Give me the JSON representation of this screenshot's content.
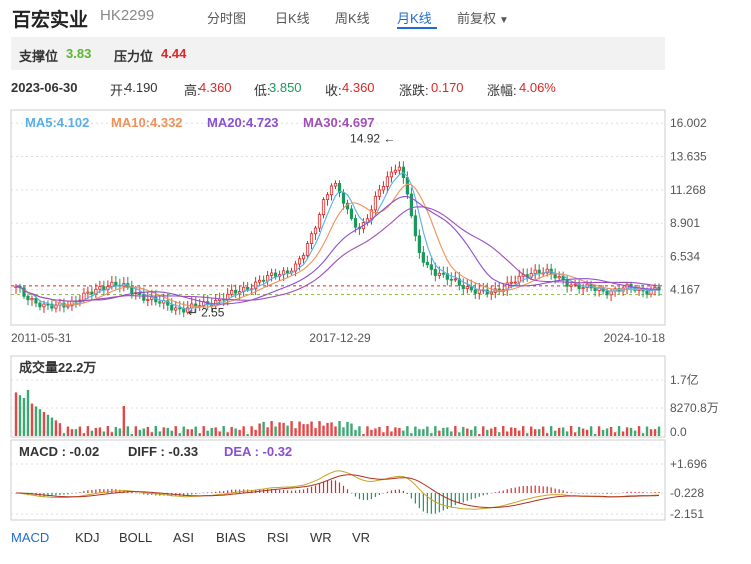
{
  "header": {
    "stock_name": "百宏实业",
    "stock_code": "HK2299",
    "tabs": [
      {
        "label": "分时图",
        "active": false
      },
      {
        "label": "日K线",
        "active": false
      },
      {
        "label": "周K线",
        "active": false
      },
      {
        "label": "月K线",
        "active": true
      },
      {
        "label": "前复权",
        "active": false,
        "dropdown": true
      }
    ]
  },
  "levels": {
    "support_label": "支撑位",
    "support_value": "3.83",
    "resistance_label": "压力位",
    "resistance_value": "4.44"
  },
  "ohlc": {
    "date": "2023-06-30",
    "open_label": "开:",
    "open": "4.190",
    "high_label": "高:",
    "high": "4.360",
    "low_label": "低:",
    "low": "3.850",
    "close_label": "收:",
    "close": "4.360",
    "change_label": "涨跌:",
    "change": "0.170",
    "pct_label": "涨幅:",
    "pct": "4.06%"
  },
  "ma_legend": [
    {
      "text": "MA5:4.102",
      "color": "#5aafe6"
    },
    {
      "text": "MA10:4.332",
      "color": "#f0915a"
    },
    {
      "text": "MA20:4.723",
      "color": "#8a4fd0"
    },
    {
      "text": "MA30:4.697",
      "color": "#a04fb8"
    }
  ],
  "colors": {
    "up": "#e02626",
    "down": "#1a9a5a",
    "axis": "#555",
    "grid": "#dddddd",
    "support_line": "#8bc34a",
    "resistance_line": "#e0262680"
  },
  "volume": {
    "label": "成交量22.2万",
    "ticks": [
      "1.7亿",
      "8270.8万",
      "0.0"
    ]
  },
  "macd": {
    "macd_text": "MACD : -0.02",
    "diff_text": "DIFF : -0.33",
    "dea_text": "DEA : -0.32",
    "diff_color": "#c9a227",
    "dea_color": "#8a4fd0",
    "ticks": [
      "+1.696",
      "-0.228",
      "-2.151"
    ]
  },
  "indicator_tabs": [
    {
      "label": "MACD",
      "active": true
    },
    {
      "label": "KDJ",
      "active": false
    },
    {
      "label": "BOLL",
      "active": false
    },
    {
      "label": "ASI",
      "active": false
    },
    {
      "label": "BIAS",
      "active": false
    },
    {
      "label": "RSI",
      "active": false
    },
    {
      "label": "WR",
      "active": false
    },
    {
      "label": "VR",
      "active": false
    }
  ],
  "chart_data": {
    "type": "candlestick",
    "interval": "monthly",
    "adjustment": "前复权",
    "x_tick_labels": [
      "2011-05-31",
      "2017-12-29",
      "2024-10-18"
    ],
    "y_tick_labels": [
      "16.002",
      "13.635",
      "11.268",
      "8.901",
      "6.534",
      "4.167"
    ],
    "ylim": [
      1.8,
      16.8
    ],
    "max_annotation": "14.92",
    "min_annotation": "2.55",
    "max_value": 14.92,
    "min_value": 2.55,
    "support": 3.83,
    "resistance": 4.44,
    "close_path": [
      4.3,
      3.7,
      3.4,
      3.0,
      2.9,
      3.1,
      3.3,
      3.6,
      3.9,
      4.3,
      4.6,
      4.5,
      4.2,
      3.9,
      3.6,
      3.3,
      3.1,
      2.9,
      2.8,
      2.9,
      3.1,
      3.3,
      3.5,
      3.8,
      4.1,
      4.4,
      4.7,
      5.0,
      5.3,
      5.5,
      5.8,
      6.8,
      8.5,
      10.5,
      11.8,
      10.6,
      9.2,
      8.5,
      9.6,
      11.2,
      12.3,
      13.2,
      11.0,
      7.2,
      6.0,
      5.4,
      5.0,
      4.8,
      4.5,
      4.1,
      3.9,
      4.0,
      4.3,
      4.6,
      4.9,
      5.3,
      5.6,
      5.4,
      5.0,
      4.7,
      4.5,
      4.3,
      4.2,
      4.1,
      4.1,
      4.2,
      4.3,
      4.2,
      4.1,
      4.2
    ],
    "legend_position": "top-left"
  }
}
